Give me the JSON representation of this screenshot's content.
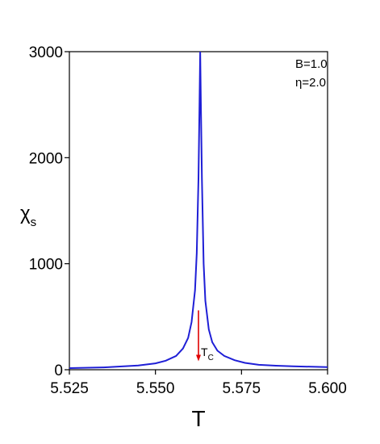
{
  "chart_data": {
    "type": "line",
    "title": "",
    "xlabel": "T",
    "ylabel_symbol": "χ",
    "ylabel_subscript": "s",
    "xlim": [
      5.525,
      5.6
    ],
    "ylim": [
      0,
      3000
    ],
    "x_ticks": [
      "5.525",
      "5.550",
      "5.575",
      "5.600"
    ],
    "y_ticks": [
      "0",
      "1000",
      "2000",
      "3000"
    ],
    "x_tick_values": [
      5.525,
      5.55,
      5.575,
      5.6
    ],
    "y_tick_values": [
      0,
      1000,
      2000,
      3000
    ],
    "grid": false,
    "series": [
      {
        "color": "#1f1fd6",
        "peak_x": 5.563,
        "x": [
          5.525,
          5.535,
          5.545,
          5.55,
          5.553,
          5.556,
          5.558,
          5.5595,
          5.5605,
          5.5615,
          5.562,
          5.5625,
          5.5628,
          5.563,
          5.5632,
          5.5635,
          5.564,
          5.5645,
          5.5655,
          5.5665,
          5.568,
          5.57,
          5.573,
          5.576,
          5.58,
          5.585,
          5.59,
          5.6
        ],
        "y": [
          15,
          22,
          40,
          60,
          85,
          130,
          200,
          300,
          450,
          750,
          1100,
          1800,
          2500,
          3000,
          2500,
          1800,
          1000,
          650,
          380,
          260,
          180,
          130,
          90,
          65,
          47,
          38,
          32,
          25
        ]
      }
    ],
    "annotations": {
      "params": [
        "B=1.0",
        "η=2.0"
      ],
      "tc_symbol": "T",
      "tc_subscript": "C",
      "tc_arrow_color": "#e00000",
      "tc_arrow_x": 5.5625,
      "tc_arrow_from_y": 560,
      "tc_arrow_to_y": 80
    }
  }
}
